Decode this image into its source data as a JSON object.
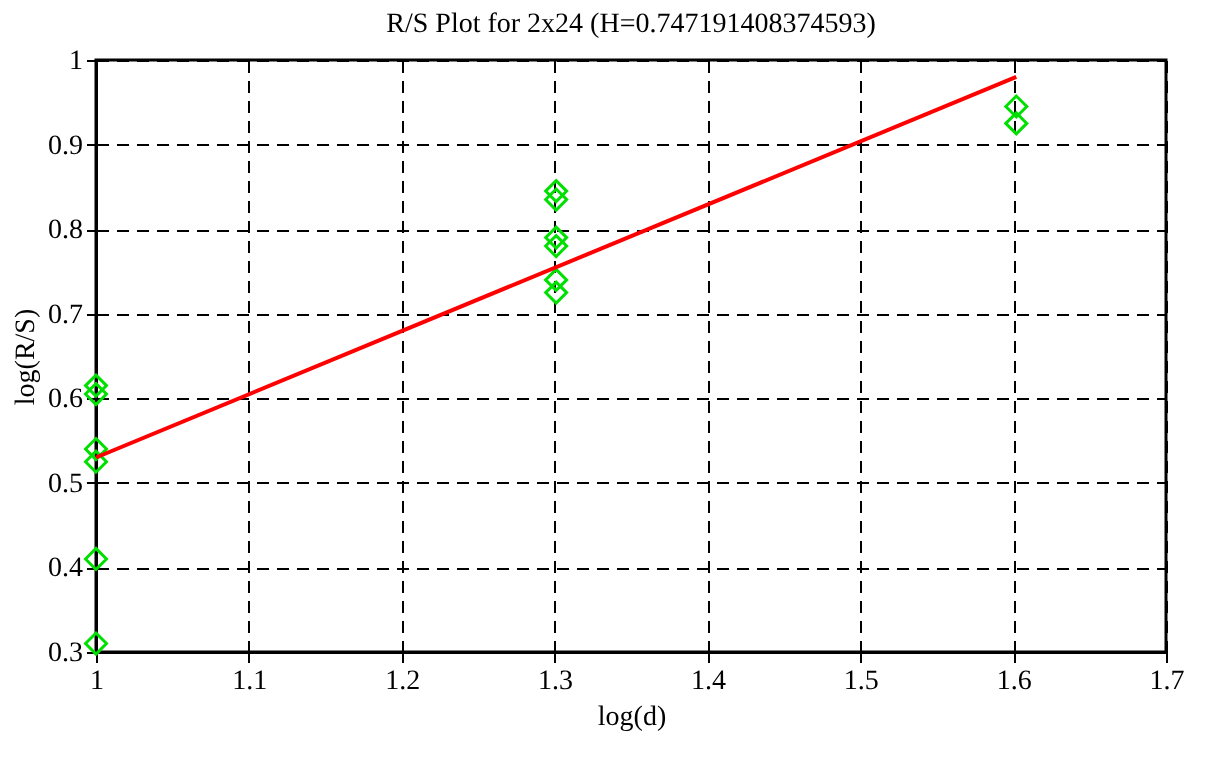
{
  "chart_data": {
    "type": "scatter",
    "title": "R/S Plot for 2x24 (H=0.747191408374593)",
    "xlabel": "log(d)",
    "ylabel": "log(R/S)",
    "xlim": [
      1,
      1.7
    ],
    "xticks": [
      1,
      1.1,
      1.2,
      1.3,
      1.4,
      1.5,
      1.6,
      1.7
    ],
    "ylim": [
      0.3,
      1
    ],
    "yticks": [
      0.3,
      0.4,
      0.5,
      0.6,
      0.7,
      0.8,
      0.9,
      1
    ],
    "grid": true,
    "series": [
      {
        "color": "#00e000",
        "marker": "diamond",
        "x": [
          1,
          1,
          1,
          1,
          1,
          1,
          1.30103,
          1.30103,
          1.30103,
          1.30103,
          1.30103,
          1.30103,
          1.60206,
          1.60206
        ],
        "values": [
          0.615,
          0.605,
          0.54,
          0.525,
          0.41,
          0.31,
          0.845,
          0.835,
          0.79,
          0.78,
          0.74,
          0.725,
          0.945,
          0.925
        ]
      },
      {
        "type": "line",
        "color": "#ff0000",
        "line_style": "solid",
        "x": [
          1,
          1.60206
        ],
        "values": [
          0.53,
          0.98
        ]
      }
    ]
  }
}
